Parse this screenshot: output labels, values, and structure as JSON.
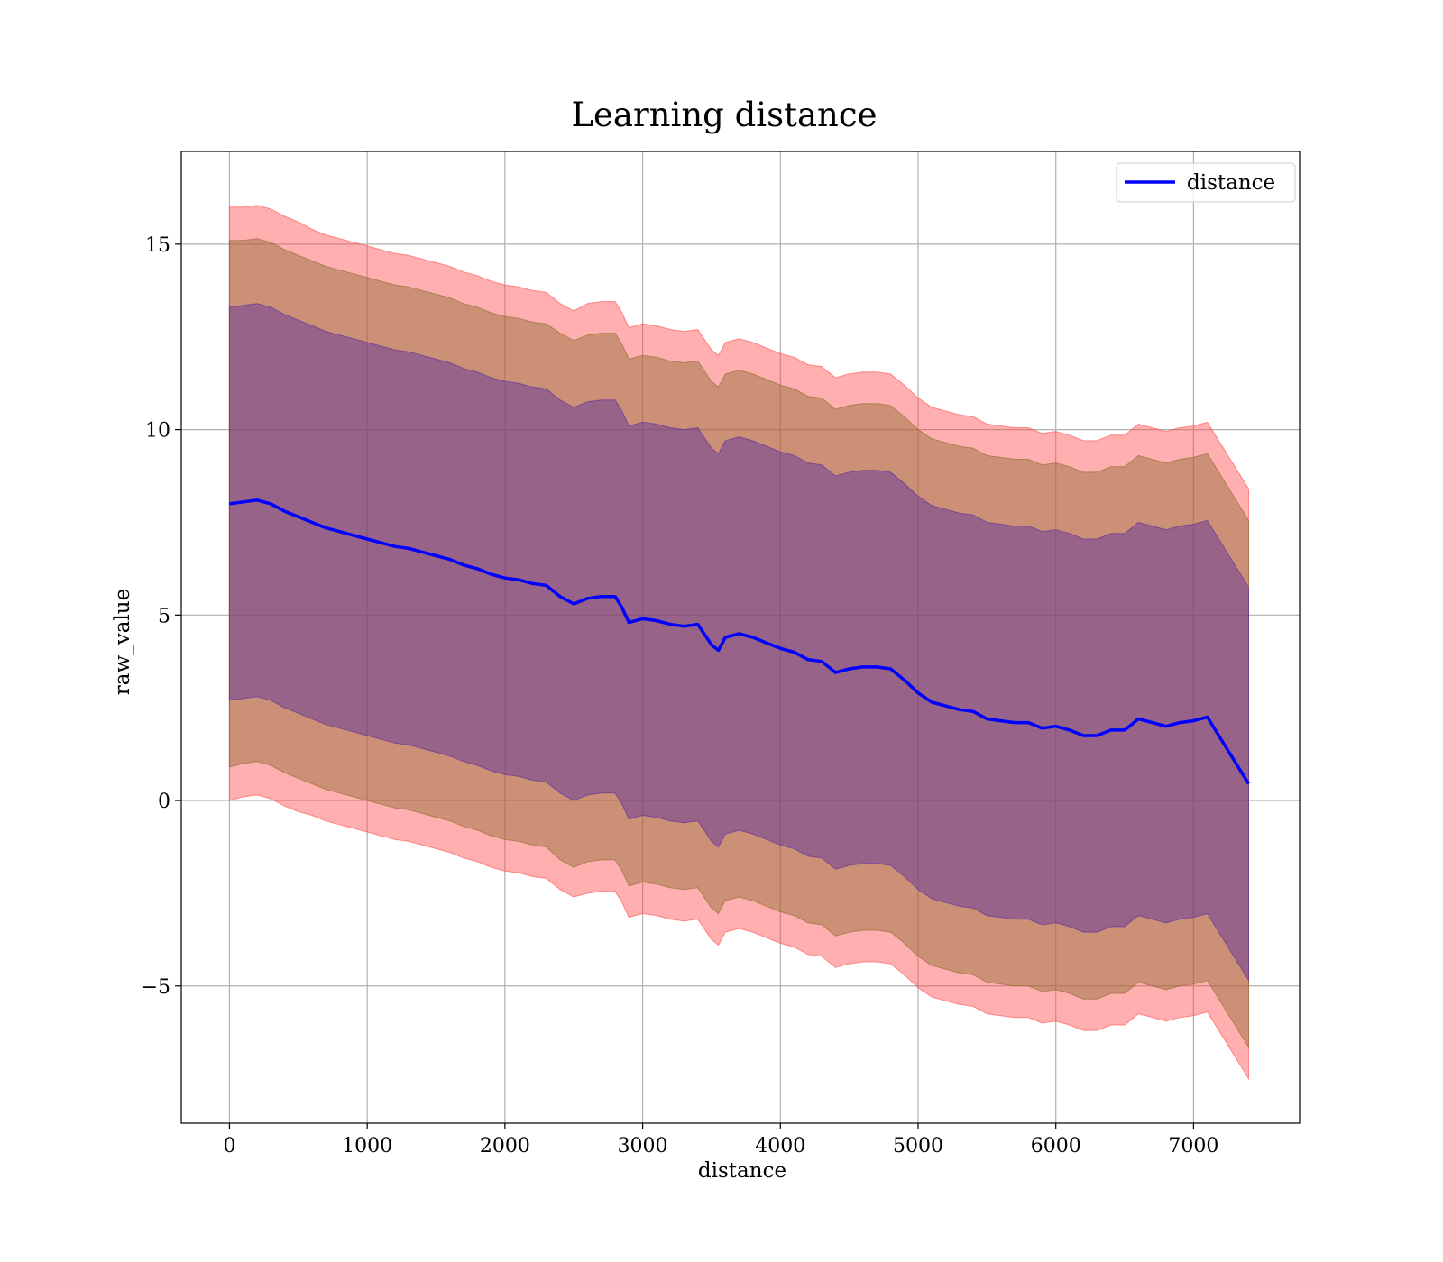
{
  "chart_data": {
    "type": "line",
    "title": "Learning distance",
    "xlabel": "distance",
    "ylabel": "raw_value",
    "xlim": [
      -350,
      7770
    ],
    "ylim": [
      -8.7,
      17.5
    ],
    "xticks": [
      0,
      1000,
      2000,
      3000,
      4000,
      5000,
      6000,
      7000
    ],
    "yticks": [
      -5,
      0,
      5,
      10,
      15
    ],
    "ytick_labels": [
      "−5",
      "0",
      "5",
      "10",
      "15"
    ],
    "grid": true,
    "legend": {
      "position": "top-right",
      "entries": [
        "distance"
      ]
    },
    "series": [
      {
        "name": "distance",
        "color": "#0000ff",
        "x": [
          0,
          100,
          200,
          300,
          400,
          500,
          600,
          700,
          800,
          900,
          1000,
          1100,
          1200,
          1300,
          1400,
          1500,
          1600,
          1700,
          1800,
          1900,
          2000,
          2100,
          2200,
          2300,
          2400,
          2500,
          2600,
          2700,
          2800,
          2850,
          2900,
          3000,
          3100,
          3200,
          3300,
          3400,
          3500,
          3550,
          3600,
          3700,
          3800,
          3900,
          4000,
          4100,
          4200,
          4300,
          4400,
          4500,
          4600,
          4700,
          4800,
          4900,
          5000,
          5100,
          5200,
          5300,
          5400,
          5500,
          5600,
          5700,
          5800,
          5900,
          6000,
          6100,
          6200,
          6300,
          6400,
          6500,
          6600,
          6700,
          6800,
          6900,
          7000,
          7100,
          7400
        ],
        "y": [
          8.0,
          8.05,
          8.1,
          8.0,
          7.8,
          7.65,
          7.5,
          7.35,
          7.25,
          7.15,
          7.05,
          6.95,
          6.85,
          6.8,
          6.7,
          6.6,
          6.5,
          6.35,
          6.25,
          6.1,
          6.0,
          5.95,
          5.85,
          5.8,
          5.5,
          5.3,
          5.45,
          5.5,
          5.5,
          5.2,
          4.8,
          4.9,
          4.85,
          4.75,
          4.7,
          4.75,
          4.2,
          4.05,
          4.4,
          4.5,
          4.4,
          4.25,
          4.1,
          4.0,
          3.8,
          3.75,
          3.45,
          3.55,
          3.6,
          3.6,
          3.55,
          3.25,
          2.9,
          2.65,
          2.55,
          2.45,
          2.4,
          2.2,
          2.15,
          2.1,
          2.1,
          1.95,
          2.0,
          1.9,
          1.75,
          1.75,
          1.9,
          1.9,
          2.2,
          2.1,
          2.0,
          2.1,
          2.15,
          2.25,
          0.45
        ]
      }
    ],
    "bands": [
      {
        "color": "#ff4d4d",
        "opacity": 0.45,
        "halfwidth": [
          8.0,
          7.95,
          7.95,
          7.95,
          7.95,
          7.95,
          7.9,
          7.9,
          7.9,
          7.9,
          7.9,
          7.9,
          7.9,
          7.9,
          7.9,
          7.9,
          7.9,
          7.9,
          7.9,
          7.9,
          7.9,
          7.9,
          7.9,
          7.9,
          7.9,
          7.9,
          7.95,
          7.95,
          7.95,
          7.95,
          7.95,
          7.95,
          7.95,
          7.95,
          7.95,
          7.95,
          7.95,
          7.95,
          7.95,
          7.95,
          7.95,
          7.95,
          7.95,
          7.95,
          7.95,
          7.95,
          7.95,
          7.95,
          7.95,
          7.95,
          7.95,
          7.95,
          7.95,
          7.95,
          7.95,
          7.95,
          7.95,
          7.95,
          7.95,
          7.95,
          7.95,
          7.95,
          7.95,
          7.95,
          7.95,
          7.95,
          7.95,
          7.95,
          7.95,
          7.95,
          7.95,
          7.95,
          7.95,
          7.95,
          7.95
        ]
      },
      {
        "color": "#8b6a2f",
        "opacity": 0.45,
        "halfwidth": [
          7.1,
          7.05,
          7.05,
          7.05,
          7.05,
          7.05,
          7.05,
          7.05,
          7.05,
          7.05,
          7.05,
          7.05,
          7.05,
          7.05,
          7.05,
          7.05,
          7.05,
          7.05,
          7.05,
          7.05,
          7.05,
          7.05,
          7.05,
          7.05,
          7.1,
          7.1,
          7.1,
          7.1,
          7.1,
          7.1,
          7.1,
          7.1,
          7.1,
          7.1,
          7.1,
          7.1,
          7.1,
          7.1,
          7.1,
          7.1,
          7.1,
          7.1,
          7.1,
          7.1,
          7.1,
          7.1,
          7.1,
          7.1,
          7.1,
          7.1,
          7.1,
          7.1,
          7.1,
          7.1,
          7.1,
          7.1,
          7.1,
          7.1,
          7.1,
          7.1,
          7.1,
          7.1,
          7.1,
          7.1,
          7.1,
          7.1,
          7.1,
          7.1,
          7.1,
          7.1,
          7.1,
          7.1,
          7.1,
          7.1,
          7.1
        ]
      },
      {
        "color": "#5a2ca0",
        "opacity": 0.45,
        "halfwidth": [
          5.3,
          5.3,
          5.3,
          5.3,
          5.3,
          5.3,
          5.3,
          5.3,
          5.3,
          5.3,
          5.3,
          5.3,
          5.3,
          5.3,
          5.3,
          5.3,
          5.3,
          5.3,
          5.3,
          5.3,
          5.3,
          5.3,
          5.3,
          5.3,
          5.3,
          5.3,
          5.3,
          5.3,
          5.3,
          5.3,
          5.3,
          5.3,
          5.3,
          5.3,
          5.3,
          5.3,
          5.3,
          5.3,
          5.3,
          5.3,
          5.3,
          5.3,
          5.3,
          5.3,
          5.3,
          5.3,
          5.3,
          5.3,
          5.3,
          5.3,
          5.3,
          5.3,
          5.3,
          5.3,
          5.3,
          5.3,
          5.3,
          5.3,
          5.3,
          5.3,
          5.3,
          5.3,
          5.3,
          5.3,
          5.3,
          5.3,
          5.3,
          5.3,
          5.3,
          5.3,
          5.3,
          5.3,
          5.3,
          5.3,
          5.3
        ]
      }
    ]
  }
}
